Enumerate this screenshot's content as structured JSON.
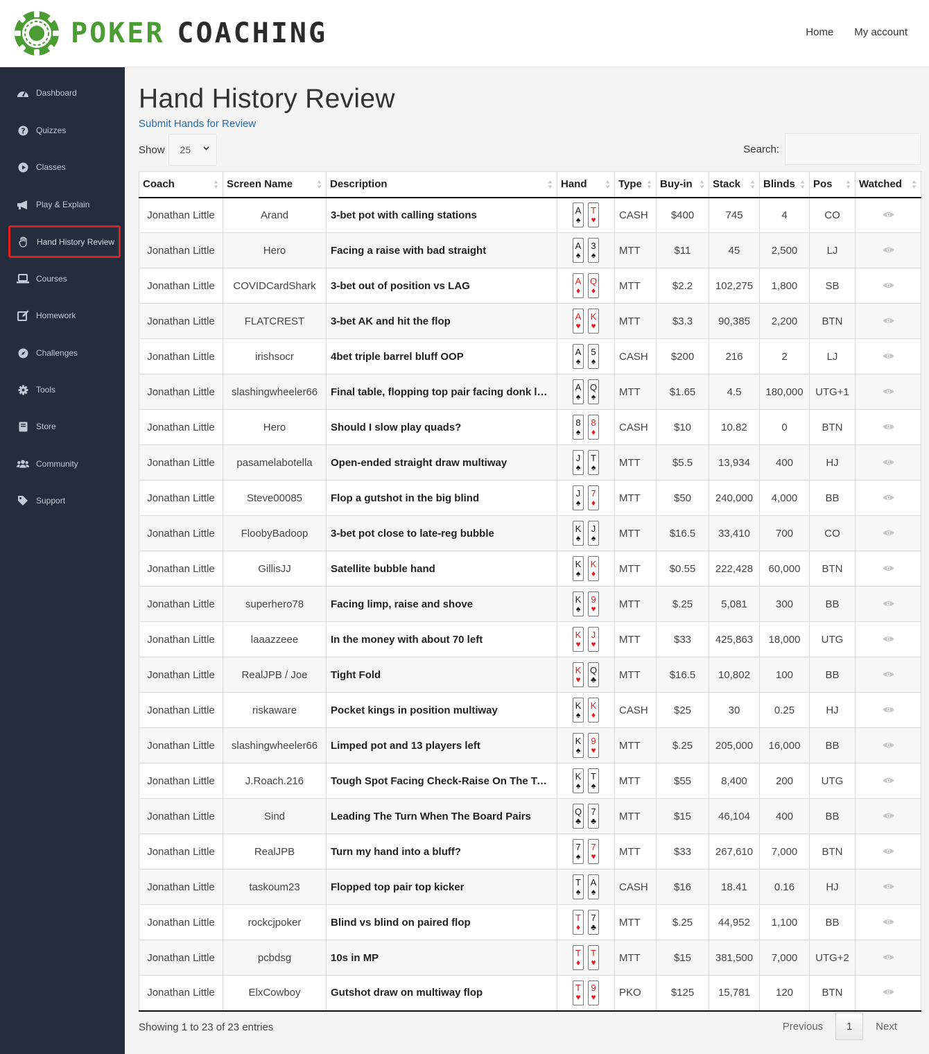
{
  "brand": {
    "word1": "POKER",
    "word2": "COACHING"
  },
  "topnav": {
    "home": "Home",
    "account": "My account"
  },
  "sidebar": {
    "items": [
      {
        "label": "Dashboard",
        "icon": "gauge-icon"
      },
      {
        "label": "Quizzes",
        "icon": "question-circle-icon"
      },
      {
        "label": "Classes",
        "icon": "play-circle-icon"
      },
      {
        "label": "Play & Explain",
        "icon": "megaphone-icon"
      },
      {
        "label": "Hand History Review",
        "icon": "hand-icon",
        "active": true
      },
      {
        "label": "Courses",
        "icon": "laptop-icon"
      },
      {
        "label": "Homework",
        "icon": "edit-icon"
      },
      {
        "label": "Challenges",
        "icon": "compass-icon"
      },
      {
        "label": "Tools",
        "icon": "gear-icon"
      },
      {
        "label": "Store",
        "icon": "book-icon"
      },
      {
        "label": "Community",
        "icon": "users-icon"
      },
      {
        "label": "Support",
        "icon": "tag-icon"
      }
    ]
  },
  "page": {
    "title": "Hand History Review",
    "submit_link": "Submit Hands for Review",
    "show_label": "Show",
    "show_value": "25",
    "search_label": "Search:",
    "search_value": ""
  },
  "table": {
    "columns": [
      "Coach",
      "Screen Name",
      "Description",
      "Hand",
      "Type",
      "Buy-in",
      "Stack",
      "Blinds",
      "Pos",
      "Watched"
    ],
    "rows": [
      {
        "coach": "Jonathan Little",
        "screen": "Arand",
        "desc": "3-bet pot with calling stations",
        "c1": [
          "A",
          "♠",
          "blk"
        ],
        "c2": [
          "T",
          "♥",
          "red"
        ],
        "type": "CASH",
        "buyin": "$400",
        "stack": "745",
        "blinds": "4",
        "pos": "CO"
      },
      {
        "coach": "Jonathan Little",
        "screen": "Hero",
        "desc": "Facing a raise with bad straight",
        "c1": [
          "A",
          "♠",
          "blk"
        ],
        "c2": [
          "3",
          "♠",
          "blk"
        ],
        "type": "MTT",
        "buyin": "$11",
        "stack": "45",
        "blinds": "2,500",
        "pos": "LJ"
      },
      {
        "coach": "Jonathan Little",
        "screen": "COVIDCardShark",
        "desc": "3-bet out of position vs LAG",
        "c1": [
          "A",
          "♦",
          "red"
        ],
        "c2": [
          "Q",
          "♦",
          "red"
        ],
        "type": "MTT",
        "buyin": "$2.2",
        "stack": "102,275",
        "blinds": "1,800",
        "pos": "SB"
      },
      {
        "coach": "Jonathan Little",
        "screen": "FLATCREST",
        "desc": "3-bet AK and hit the flop",
        "c1": [
          "A",
          "♥",
          "red"
        ],
        "c2": [
          "K",
          "♥",
          "red"
        ],
        "type": "MTT",
        "buyin": "$3.3",
        "stack": "90,385",
        "blinds": "2,200",
        "pos": "BTN"
      },
      {
        "coach": "Jonathan Little",
        "screen": "irishsocr",
        "desc": "4bet triple barrel bluff OOP",
        "c1": [
          "A",
          "♠",
          "blk"
        ],
        "c2": [
          "5",
          "♠",
          "blk"
        ],
        "type": "CASH",
        "buyin": "$200",
        "stack": "216",
        "blinds": "2",
        "pos": "LJ"
      },
      {
        "coach": "Jonathan Little",
        "screen": "slashingwheeler66",
        "desc": "Final table, flopping top pair facing donk lead",
        "c1": [
          "A",
          "♠",
          "blk"
        ],
        "c2": [
          "Q",
          "♠",
          "blk"
        ],
        "type": "MTT",
        "buyin": "$1.65",
        "stack": "4.5",
        "blinds": "180,000",
        "pos": "UTG+1"
      },
      {
        "coach": "Jonathan Little",
        "screen": "Hero",
        "desc": "Should I slow play quads?",
        "c1": [
          "8",
          "♠",
          "blk"
        ],
        "c2": [
          "8",
          "♦",
          "red"
        ],
        "type": "CASH",
        "buyin": "$10",
        "stack": "10.82",
        "blinds": "0",
        "pos": "BTN"
      },
      {
        "coach": "Jonathan Little",
        "screen": "pasamelabotella",
        "desc": "Open-ended straight draw multiway",
        "c1": [
          "J",
          "♠",
          "blk"
        ],
        "c2": [
          "T",
          "♠",
          "blk"
        ],
        "type": "MTT",
        "buyin": "$5.5",
        "stack": "13,934",
        "blinds": "400",
        "pos": "HJ"
      },
      {
        "coach": "Jonathan Little",
        "screen": "Steve00085",
        "desc": "Flop a gutshot in the big blind",
        "c1": [
          "J",
          "♠",
          "blk"
        ],
        "c2": [
          "7",
          "♦",
          "red"
        ],
        "type": "MTT",
        "buyin": "$50",
        "stack": "240,000",
        "blinds": "4,000",
        "pos": "BB"
      },
      {
        "coach": "Jonathan Little",
        "screen": "FloobyBadoop",
        "desc": "3-bet pot close to late-reg bubble",
        "c1": [
          "K",
          "♠",
          "blk"
        ],
        "c2": [
          "J",
          "♠",
          "blk"
        ],
        "type": "MTT",
        "buyin": "$16.5",
        "stack": "33,410",
        "blinds": "700",
        "pos": "CO"
      },
      {
        "coach": "Jonathan Little",
        "screen": "GillisJJ",
        "desc": "Satellite bubble hand",
        "c1": [
          "K",
          "♠",
          "blk"
        ],
        "c2": [
          "K",
          "♦",
          "red"
        ],
        "type": "MTT",
        "buyin": "$0.55",
        "stack": "222,428",
        "blinds": "60,000",
        "pos": "BTN"
      },
      {
        "coach": "Jonathan Little",
        "screen": "superhero78",
        "desc": "Facing limp, raise and shove",
        "c1": [
          "K",
          "♠",
          "blk"
        ],
        "c2": [
          "9",
          "♥",
          "red"
        ],
        "type": "MTT",
        "buyin": "$.25",
        "stack": "5,081",
        "blinds": "300",
        "pos": "BB"
      },
      {
        "coach": "Jonathan Little",
        "screen": "laaazzeee",
        "desc": "In the money with about 70 left",
        "c1": [
          "K",
          "♥",
          "red"
        ],
        "c2": [
          "J",
          "♥",
          "red"
        ],
        "type": "MTT",
        "buyin": "$33",
        "stack": "425,863",
        "blinds": "18,000",
        "pos": "UTG"
      },
      {
        "coach": "Jonathan Little",
        "screen": "RealJPB / Joe",
        "desc": "Tight Fold",
        "c1": [
          "K",
          "♥",
          "red"
        ],
        "c2": [
          "Q",
          "♣",
          "blk"
        ],
        "type": "MTT",
        "buyin": "$16.5",
        "stack": "10,802",
        "blinds": "100",
        "pos": "BB"
      },
      {
        "coach": "Jonathan Little",
        "screen": "riskaware",
        "desc": "Pocket kings in position multiway",
        "c1": [
          "K",
          "♠",
          "blk"
        ],
        "c2": [
          "K",
          "♦",
          "red"
        ],
        "type": "CASH",
        "buyin": "$25",
        "stack": "30",
        "blinds": "0.25",
        "pos": "HJ"
      },
      {
        "coach": "Jonathan Little",
        "screen": "slashingwheeler66",
        "desc": "Limped pot and 13 players left",
        "c1": [
          "K",
          "♠",
          "blk"
        ],
        "c2": [
          "9",
          "♥",
          "red"
        ],
        "type": "MTT",
        "buyin": "$.25",
        "stack": "205,000",
        "blinds": "16,000",
        "pos": "BB"
      },
      {
        "coach": "Jonathan Little",
        "screen": "J.Roach.216",
        "desc": "Tough Spot Facing Check-Raise On The Turn",
        "c1": [
          "K",
          "♠",
          "blk"
        ],
        "c2": [
          "T",
          "♠",
          "blk"
        ],
        "type": "MTT",
        "buyin": "$55",
        "stack": "8,400",
        "blinds": "200",
        "pos": "UTG"
      },
      {
        "coach": "Jonathan Little",
        "screen": "Sind",
        "desc": "Leading The Turn When The Board Pairs",
        "c1": [
          "Q",
          "♣",
          "blk"
        ],
        "c2": [
          "7",
          "♣",
          "blk"
        ],
        "type": "MTT",
        "buyin": "$15",
        "stack": "46,104",
        "blinds": "400",
        "pos": "BB"
      },
      {
        "coach": "Jonathan Little",
        "screen": "RealJPB",
        "desc": "Turn my hand into a bluff?",
        "c1": [
          "7",
          "♠",
          "blk"
        ],
        "c2": [
          "7",
          "♥",
          "red"
        ],
        "type": "MTT",
        "buyin": "$33",
        "stack": "267,610",
        "blinds": "7,000",
        "pos": "BTN"
      },
      {
        "coach": "Jonathan Little",
        "screen": "taskoum23",
        "desc": "Flopped top pair top kicker",
        "c1": [
          "T",
          "♠",
          "blk"
        ],
        "c2": [
          "A",
          "♠",
          "blk"
        ],
        "type": "CASH",
        "buyin": "$16",
        "stack": "18.41",
        "blinds": "0.16",
        "pos": "HJ"
      },
      {
        "coach": "Jonathan Little",
        "screen": "rockcjpoker",
        "desc": "Blind vs blind on paired flop",
        "c1": [
          "T",
          "♦",
          "red"
        ],
        "c2": [
          "7",
          "♣",
          "blk"
        ],
        "type": "MTT",
        "buyin": "$.25",
        "stack": "44,952",
        "blinds": "1,100",
        "pos": "BB"
      },
      {
        "coach": "Jonathan Little",
        "screen": "pcbdsg",
        "desc": "10s in MP",
        "c1": [
          "T",
          "♦",
          "red"
        ],
        "c2": [
          "T",
          "♥",
          "red"
        ],
        "type": "MTT",
        "buyin": "$15",
        "stack": "381,500",
        "blinds": "7,000",
        "pos": "UTG+2"
      },
      {
        "coach": "Jonathan Little",
        "screen": "ElxCowboy",
        "desc": "Gutshot draw on multiway flop",
        "c1": [
          "T",
          "♥",
          "red"
        ],
        "c2": [
          "9",
          "♥",
          "red"
        ],
        "type": "PKO",
        "buyin": "$125",
        "stack": "15,781",
        "blinds": "120",
        "pos": "BTN"
      }
    ]
  },
  "footer": {
    "info": "Showing 1 to 23 of 23 entries",
    "previous": "Previous",
    "current_page": "1",
    "next": "Next"
  },
  "colors": {
    "brand_green": "#4b9d33",
    "sidebar_bg": "#232d3d",
    "link": "#2b6aa8",
    "active_outline": "#e01f1f"
  }
}
